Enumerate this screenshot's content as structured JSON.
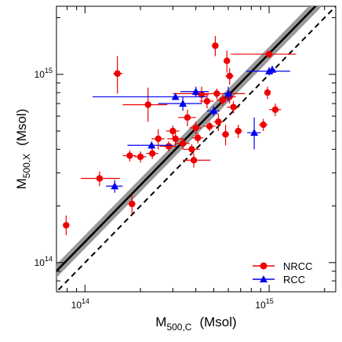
{
  "chart_data": {
    "type": "scatter",
    "x_scale": "log",
    "y_scale": "log",
    "xlim": [
      70000000000000,
      2300000000000000
    ],
    "ylim": [
      70000000000000,
      2300000000000000
    ],
    "xlabel": {
      "main": "M",
      "sub": "500,C",
      "unit": "(Msol)"
    },
    "ylabel": {
      "main": "M",
      "sub": "500,X",
      "unit": "(Msol)"
    },
    "x_ticks": [
      {
        "value": 100000000000000,
        "base": "10",
        "exp": "14"
      },
      {
        "value": 1000000000000000,
        "base": "10",
        "exp": "15"
      }
    ],
    "y_ticks": [
      {
        "value": 100000000000000,
        "base": "10",
        "exp": "14"
      },
      {
        "value": 1000000000000000,
        "base": "10",
        "exp": "15"
      }
    ],
    "grid": false,
    "legend_position": "bottom-right",
    "lines": [
      {
        "name": "",
        "style": "dashed",
        "color": "#000000",
        "slope": 1.0,
        "intercept_factor": 1.0
      },
      {
        "name": "",
        "style": "solid-band",
        "color": "#000000",
        "band_color": "#999999",
        "intercept_factor": 1.29
      }
    ],
    "series": [
      {
        "name": "NRCC",
        "color": "#ee0000",
        "marker": "circle",
        "points": [
          {
            "x": 79000000000000.0,
            "y": 158000000000000.0,
            "xerr": [
              0,
              0
            ],
            "yerr": [
              140000000000000.0,
              178000000000000.0
            ]
          },
          {
            "x": 120000000000000.0,
            "y": 280000000000000.0,
            "xerr": [
              95000000000000.0,
              155000000000000.0
            ],
            "yerr": [
              255000000000000.0,
              305000000000000.0
            ]
          },
          {
            "x": 150000000000000.0,
            "y": 1010000000000000.0,
            "xerr": [
              142000000000000.0,
              160000000000000.0
            ],
            "yerr": [
              790000000000000.0,
              1250000000000000.0
            ]
          },
          {
            "x": 175000000000000.0,
            "y": 370000000000000.0,
            "xerr": [
              160000000000000.0,
              190000000000000.0
            ],
            "yerr": [
              345000000000000.0,
              395000000000000.0
            ]
          },
          {
            "x": 180000000000000.0,
            "y": 205000000000000.0,
            "xerr": [
              172000000000000.0,
              188000000000000.0
            ],
            "yerr": [
              180000000000000.0,
              230000000000000.0
            ]
          },
          {
            "x": 200000000000000.0,
            "y": 365000000000000.0,
            "xerr": [
              185000000000000.0,
              215000000000000.0
            ],
            "yerr": [
              340000000000000.0,
              390000000000000.0
            ]
          },
          {
            "x": 220000000000000.0,
            "y": 690000000000000.0,
            "xerr": [
              160000000000000.0,
              280000000000000.0
            ],
            "yerr": [
              560000000000000.0,
              850000000000000.0
            ]
          },
          {
            "x": 232000000000000.0,
            "y": 380000000000000.0,
            "xerr": [
              215000000000000.0,
              250000000000000.0
            ],
            "yerr": [
              355000000000000.0,
              405000000000000.0
            ]
          },
          {
            "x": 250000000000000.0,
            "y": 455000000000000.0,
            "xerr": [
              230000000000000.0,
              270000000000000.0
            ],
            "yerr": [
              400000000000000.0,
              510000000000000.0
            ]
          },
          {
            "x": 285000000000000.0,
            "y": 415000000000000.0,
            "xerr": [
              255000000000000.0,
              315000000000000.0
            ],
            "yerr": [
              390000000000000.0,
              440000000000000.0
            ]
          },
          {
            "x": 300000000000000.0,
            "y": 500000000000000.0,
            "xerr": [
              275000000000000.0,
              325000000000000.0
            ],
            "yerr": [
              465000000000000.0,
              535000000000000.0
            ]
          },
          {
            "x": 310000000000000.0,
            "y": 455000000000000.0,
            "xerr": [
              280000000000000.0,
              340000000000000.0
            ],
            "yerr": [
              410000000000000.0,
              500000000000000.0
            ]
          },
          {
            "x": 340000000000000.0,
            "y": 430000000000000.0,
            "xerr": [
              310000000000000.0,
              370000000000000.0
            ],
            "yerr": [
              400000000000000.0,
              460000000000000.0
            ]
          },
          {
            "x": 360000000000000.0,
            "y": 590000000000000.0,
            "xerr": [
              320000000000000.0,
              400000000000000.0
            ],
            "yerr": [
              530000000000000.0,
              650000000000000.0
            ]
          },
          {
            "x": 380000000000000.0,
            "y": 400000000000000.0,
            "xerr": [
              340000000000000.0,
              420000000000000.0
            ],
            "yerr": [
              375000000000000.0,
              425000000000000.0
            ]
          },
          {
            "x": 390000000000000.0,
            "y": 350000000000000.0,
            "xerr": [
              340000000000000.0,
              480000000000000.0
            ],
            "yerr": [
              320000000000000.0,
              380000000000000.0
            ]
          },
          {
            "x": 400000000000000.0,
            "y": 520000000000000.0,
            "xerr": [
              370000000000000.0,
              430000000000000.0
            ],
            "yerr": [
              480000000000000.0,
              560000000000000.0
            ]
          },
          {
            "x": 410000000000000.0,
            "y": 460000000000000.0,
            "xerr": [
              380000000000000.0,
              440000000000000.0
            ],
            "yerr": [
              430000000000000.0,
              490000000000000.0
            ]
          },
          {
            "x": 430000000000000.0,
            "y": 780000000000000.0,
            "xerr": [
              390000000000000.0,
              470000000000000.0
            ],
            "yerr": [
              700000000000000.0,
              860000000000000.0
            ]
          },
          {
            "x": 460000000000000.0,
            "y": 720000000000000.0,
            "xerr": [
              420000000000000.0,
              500000000000000.0
            ],
            "yerr": [
              660000000000000.0,
              780000000000000.0
            ]
          },
          {
            "x": 475000000000000.0,
            "y": 530000000000000.0,
            "xerr": [
              440000000000000.0,
              510000000000000.0
            ],
            "yerr": [
              500000000000000.0,
              560000000000000.0
            ]
          },
          {
            "x": 510000000000000.0,
            "y": 1420000000000000.0,
            "xerr": [
              490000000000000.0,
              530000000000000.0
            ],
            "yerr": [
              1250000000000000.0,
              1600000000000000.0
            ]
          },
          {
            "x": 520000000000000.0,
            "y": 790000000000000.0,
            "xerr": [
              300000000000000.0,
              740000000000000.0
            ],
            "yerr": [
              740000000000000.0,
              840000000000000.0
            ]
          },
          {
            "x": 530000000000000.0,
            "y": 560000000000000.0,
            "xerr": [
              500000000000000.0,
              560000000000000.0
            ],
            "yerr": [
              500000000000000.0,
              620000000000000.0
            ]
          },
          {
            "x": 560000000000000.0,
            "y": 730000000000000.0,
            "xerr": [
              520000000000000.0,
              600000000000000.0
            ],
            "yerr": [
              680000000000000.0,
              780000000000000.0
            ]
          },
          {
            "x": 580000000000000.0,
            "y": 480000000000000.0,
            "xerr": [
              555000000000000.0,
              605000000000000.0
            ],
            "yerr": [
              420000000000000.0,
              540000000000000.0
            ]
          },
          {
            "x": 590000000000000.0,
            "y": 1180000000000000.0,
            "xerr": [
              570000000000000.0,
              610000000000000.0
            ],
            "yerr": [
              1020000000000000.0,
              1340000000000000.0
            ]
          },
          {
            "x": 610000000000000.0,
            "y": 980000000000000.0,
            "xerr": [
              580000000000000.0,
              640000000000000.0
            ],
            "yerr": [
              880000000000000.0,
              1080000000000000.0
            ]
          },
          {
            "x": 610000000000000.0,
            "y": 760000000000000.0,
            "xerr": [
              560000000000000.0,
              660000000000000.0
            ],
            "yerr": [
              700000000000000.0,
              820000000000000.0
            ]
          },
          {
            "x": 640000000000000.0,
            "y": 670000000000000.0,
            "xerr": [
              590000000000000.0,
              690000000000000.0
            ],
            "yerr": [
              620000000000000.0,
              720000000000000.0
            ]
          },
          {
            "x": 680000000000000.0,
            "y": 500000000000000.0,
            "xerr": [
              650000000000000.0,
              710000000000000.0
            ],
            "yerr": [
              460000000000000.0,
              540000000000000.0
            ]
          },
          {
            "x": 930000000000000.0,
            "y": 540000000000000.0,
            "xerr": [
              880000000000000.0,
              980000000000000.0
            ],
            "yerr": [
              500000000000000.0,
              580000000000000.0
            ]
          },
          {
            "x": 980000000000000.0,
            "y": 800000000000000.0,
            "xerr": [
              950000000000000.0,
              1010000000000000.0
            ],
            "yerr": [
              740000000000000.0,
              860000000000000.0
            ]
          },
          {
            "x": 1000000000000000.0,
            "y": 1280000000000000.0,
            "xerr": [
              620000000000000.0,
              1400000000000000.0
            ],
            "yerr": [
              1220000000000000.0,
              1340000000000000.0
            ]
          },
          {
            "x": 1080000000000000.0,
            "y": 650000000000000.0,
            "xerr": [
              1000000000000000.0,
              1160000000000000.0
            ],
            "yerr": [
              600000000000000.0,
              700000000000000.0
            ]
          }
        ]
      },
      {
        "name": "RCC",
        "color": "#0000ee",
        "marker": "triangle",
        "points": [
          {
            "x": 145000000000000.0,
            "y": 255000000000000.0,
            "xerr": [
              130000000000000.0,
              160000000000000.0
            ],
            "yerr": [
              235000000000000.0,
              275000000000000.0
            ]
          },
          {
            "x": 230000000000000.0,
            "y": 420000000000000.0,
            "xerr": [
              170000000000000.0,
              300000000000000.0
            ],
            "yerr": [
              400000000000000.0,
              440000000000000.0
            ]
          },
          {
            "x": 310000000000000.0,
            "y": 760000000000000.0,
            "xerr": [
              110000000000000.0,
              460000000000000.0
            ],
            "yerr": [
              730000000000000.0,
              790000000000000.0
            ]
          },
          {
            "x": 340000000000000.0,
            "y": 700000000000000.0,
            "xerr": [
              250000000000000.0,
              430000000000000.0
            ],
            "yerr": [
              640000000000000.0,
              760000000000000.0
            ]
          },
          {
            "x": 400000000000000.0,
            "y": 810000000000000.0,
            "xerr": [
              330000000000000.0,
              470000000000000.0
            ],
            "yerr": [
              760000000000000.0,
              860000000000000.0
            ]
          },
          {
            "x": 500000000000000.0,
            "y": 640000000000000.0,
            "xerr": [
              460000000000000.0,
              540000000000000.0
            ],
            "yerr": [
              600000000000000.0,
              680000000000000.0
            ]
          },
          {
            "x": 600000000000000.0,
            "y": 790000000000000.0,
            "xerr": [
              570000000000000.0,
              630000000000000.0
            ],
            "yerr": [
              720000000000000.0,
              860000000000000.0
            ]
          },
          {
            "x": 830000000000000.0,
            "y": 490000000000000.0,
            "xerr": [
              760000000000000.0,
              900000000000000.0
            ],
            "yerr": [
              400000000000000.0,
              590000000000000.0
            ]
          },
          {
            "x": 1000000000000000.0,
            "y": 1040000000000000.0,
            "xerr": [
              750000000000000.0,
              1300000000000000.0
            ],
            "yerr": [
              990000000000000.0,
              1090000000000000.0
            ]
          },
          {
            "x": 1040000000000000.0,
            "y": 1060000000000000.0,
            "xerr": [
              1000000000000000.0,
              1080000000000000.0
            ],
            "yerr": [
              1010000000000000.0,
              1110000000000000.0
            ]
          }
        ]
      }
    ]
  }
}
